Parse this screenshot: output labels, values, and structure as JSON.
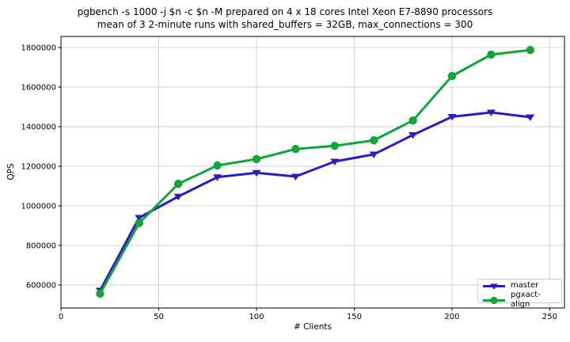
{
  "title": {
    "line1": "pgbench -s 1000 -j $n -c $n -M prepared on 4 x 18 cores Intel Xeon E7-8890 processors",
    "line2": "mean of 3 2-minute runs with shared_buffers = 32GB, max_connections = 300"
  },
  "chart_data": {
    "type": "line",
    "xlabel": "# Clients",
    "ylabel": "QPS",
    "x": [
      20,
      40,
      60,
      80,
      100,
      120,
      140,
      160,
      180,
      200,
      220,
      240
    ],
    "series": [
      {
        "name": "master",
        "color": "#2a1dc4",
        "marker": "triangle-down",
        "values": [
          572000,
          940000,
          1047000,
          1145000,
          1167000,
          1148000,
          1224000,
          1260000,
          1358000,
          1450000,
          1472000,
          1448000
        ]
      },
      {
        "name": "pgxact-align",
        "color": "#11a53c",
        "marker": "circle",
        "values": [
          556000,
          913000,
          1111000,
          1204000,
          1236000,
          1287000,
          1303000,
          1331000,
          1431000,
          1656000,
          1764000,
          1787000
        ]
      }
    ],
    "xticks": [
      0,
      50,
      100,
      150,
      200,
      250
    ],
    "yticks": [
      600000,
      800000,
      1000000,
      1200000,
      1400000,
      1600000,
      1800000
    ],
    "xlim": [
      0,
      257.5
    ],
    "ylim": [
      484000,
      1856000
    ],
    "grid": true,
    "legend_position": "lower right",
    "grid_color": "#d4d4d4",
    "spine_color": "#000000"
  }
}
